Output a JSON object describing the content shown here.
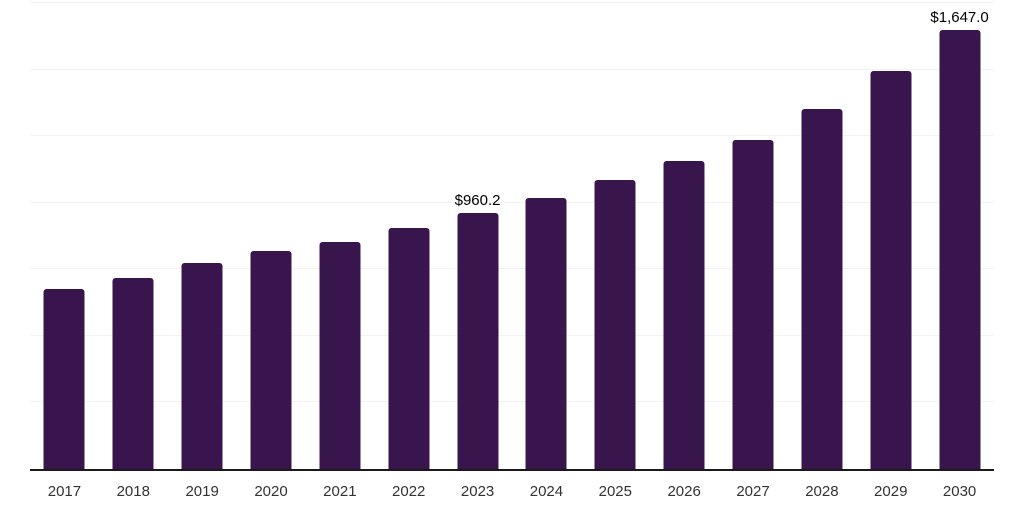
{
  "chart_data": {
    "type": "bar",
    "title": "",
    "xlabel": "",
    "ylabel": "",
    "categories": [
      "2017",
      "2018",
      "2019",
      "2020",
      "2021",
      "2022",
      "2023",
      "2024",
      "2025",
      "2026",
      "2027",
      "2028",
      "2029",
      "2030"
    ],
    "values": [
      676,
      719,
      775,
      817,
      854,
      906,
      960.2,
      1019,
      1085,
      1156,
      1237,
      1353,
      1495,
      1647
    ],
    "value_labels": [
      "",
      "",
      "",
      "",
      "",
      "",
      "$960.2",
      "",
      "",
      "",
      "",
      "",
      "",
      "$1,647.0"
    ],
    "ylim": [
      0,
      1750
    ],
    "gridline_interval": 250,
    "grid": true,
    "legend": "none",
    "colors": {
      "bar": "#39154E",
      "axis": "#1a1a1a",
      "gridline": "#f2f2f2",
      "value_label": "#000000",
      "tick_label": "#333333"
    }
  }
}
